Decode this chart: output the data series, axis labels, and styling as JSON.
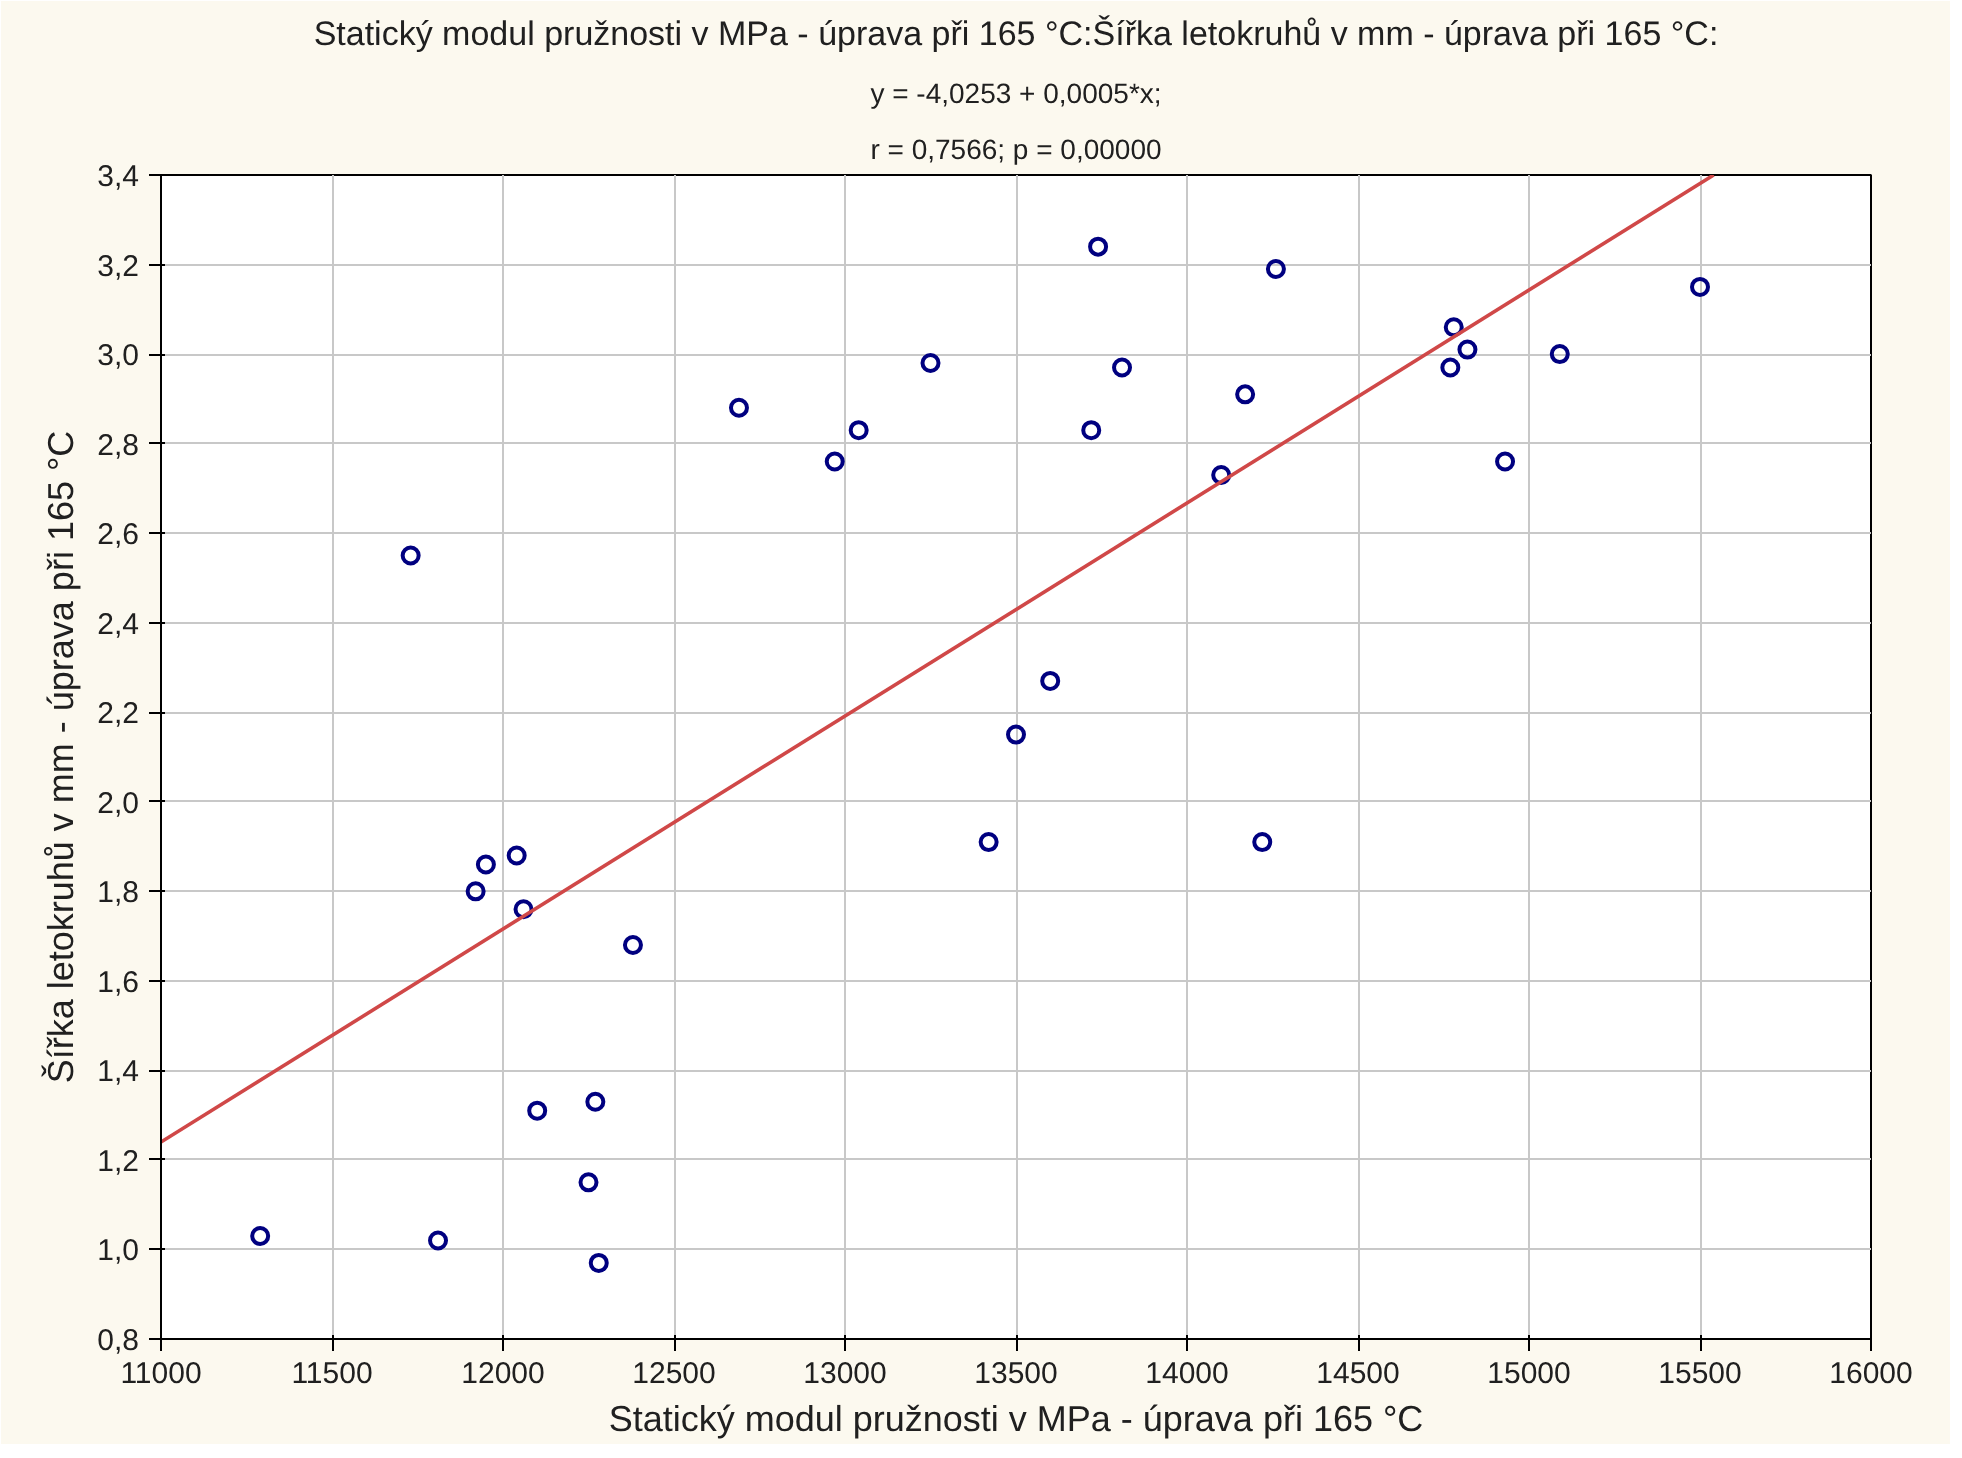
{
  "chart_data": {
    "type": "scatter",
    "title": "Statický modul pružnosti v MPa - úprava při 165 °C:Šířka letokruhů v mm - úprava při 165 °C:",
    "annotations": [
      "y = -4,0253 + 0,0005*x;",
      "r = 0,7566; p = 0,00000"
    ],
    "xlabel": "Statický modul pružnosti v MPa - úprava při 165 °C",
    "ylabel": "Šířka letokruhů v mm - úprava při 165 °C",
    "xlim": [
      11000,
      16000
    ],
    "xticks": [
      11000,
      11500,
      12000,
      12500,
      13000,
      13500,
      14000,
      14500,
      15000,
      15500,
      16000
    ],
    "ylim": [
      0.8,
      3.4
    ],
    "yticks": [
      {
        "value": 0.8,
        "label": "0,8"
      },
      {
        "value": 1.0,
        "label": "1,0"
      },
      {
        "value": 1.2,
        "label": "1,2"
      },
      {
        "value": 1.4,
        "label": "1,4"
      },
      {
        "value": 1.6,
        "label": "1,6"
      },
      {
        "value": 1.8,
        "label": "1,8"
      },
      {
        "value": 2.0,
        "label": "2,0"
      },
      {
        "value": 2.2,
        "label": "2,2"
      },
      {
        "value": 2.4,
        "label": "2,4"
      },
      {
        "value": 2.6,
        "label": "2,6"
      },
      {
        "value": 2.8,
        "label": "2,8"
      },
      {
        "value": 3.0,
        "label": "3,0"
      },
      {
        "value": 3.2,
        "label": "3,2"
      },
      {
        "value": 3.4,
        "label": "3,4"
      }
    ],
    "grid": true,
    "series": [
      {
        "marker": "circle",
        "color": "#000080",
        "x": [
          11290,
          11730,
          11810,
          11920,
          11950,
          12040,
          12060,
          12100,
          12250,
          12270,
          12280,
          12380,
          12690,
          12970,
          13040,
          13250,
          13420,
          13500,
          13600,
          13720,
          13740,
          13810,
          14100,
          14170,
          14220,
          14260,
          14770,
          14780,
          14820,
          14930,
          15090,
          15500
        ],
        "values": [
          1.03,
          2.55,
          1.02,
          1.8,
          1.86,
          1.88,
          1.76,
          1.31,
          1.15,
          1.33,
          0.97,
          1.68,
          2.88,
          2.76,
          2.83,
          2.98,
          1.91,
          2.15,
          2.27,
          2.83,
          3.24,
          2.97,
          2.73,
          2.91,
          1.91,
          3.19,
          2.97,
          3.06,
          3.01,
          2.76,
          3.0,
          3.15
        ]
      },
      {
        "type": "line",
        "marker": "none",
        "color": "#d04848",
        "line_style": "solid",
        "x": [
          11000,
          15540
        ],
        "values": [
          1.24,
          3.4
        ]
      }
    ]
  }
}
